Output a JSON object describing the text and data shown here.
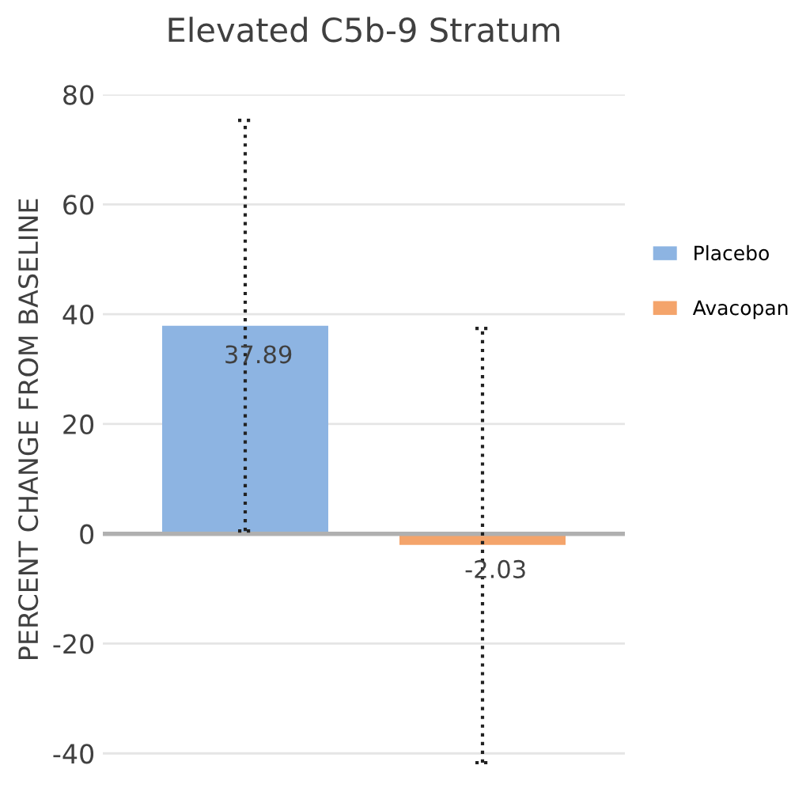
{
  "chart_data": {
    "type": "bar",
    "title": "Elevated C5b-9 Stratum",
    "ylabel": "PERCENT CHANGE FROM BASELINE",
    "categories": [
      null,
      null
    ],
    "series": [
      {
        "name": "Placebo",
        "color": "#8db4e2",
        "values": [
          37.89,
          null
        ],
        "errors": [
          [
            0.5,
            75.3
          ],
          null
        ]
      },
      {
        "name": "Avacopan",
        "color": "#f4a46b",
        "values": [
          null,
          -2.03
        ],
        "errors": [
          null,
          [
            -41.7,
            37.4
          ]
        ]
      }
    ],
    "ylim": [
      -42,
      80
    ],
    "yticks": [
      -40,
      -20,
      0,
      20,
      40,
      60,
      80
    ],
    "grid": "y",
    "legend": "right",
    "data_labels": true
  }
}
